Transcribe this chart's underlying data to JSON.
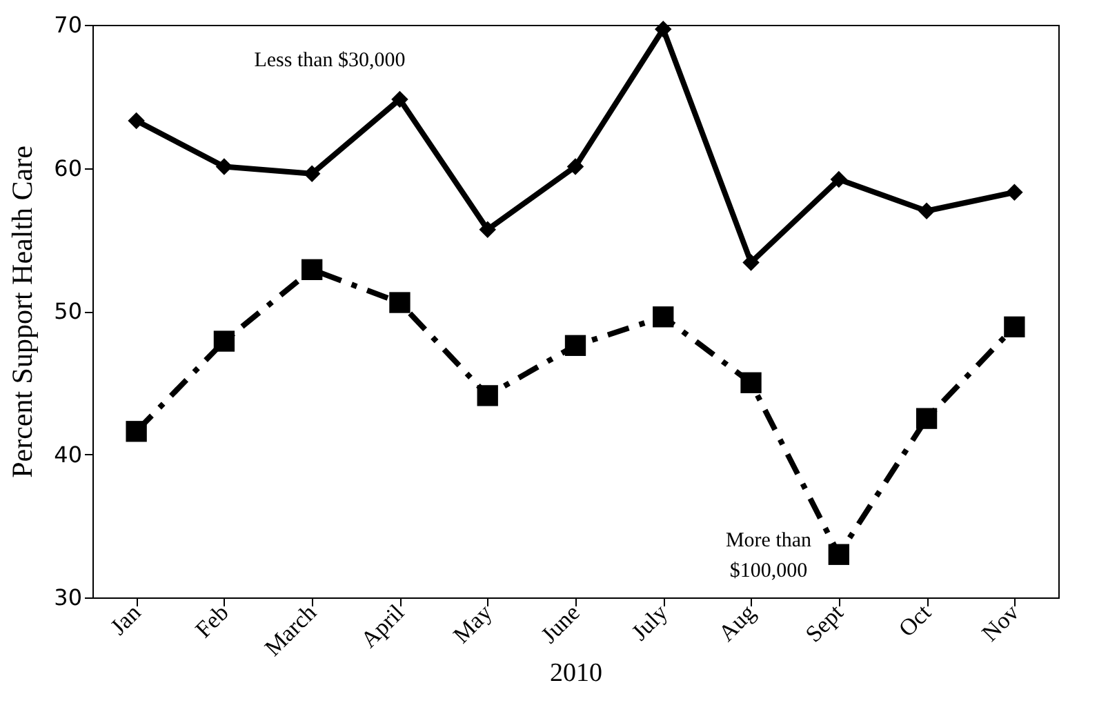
{
  "chart_data": {
    "type": "line",
    "xlabel": "2010",
    "ylabel": "Percent Support Health Care",
    "categories": [
      "Jan",
      "Feb",
      "March",
      "April",
      "May",
      "June",
      "July",
      "Aug",
      "Sept",
      "Oct",
      "Nov"
    ],
    "series": [
      {
        "name": "Less than $30,000",
        "color": "#000000",
        "marker": "diamond",
        "line_style": "solid",
        "values": [
          63.3,
          60.1,
          59.6,
          64.8,
          55.7,
          60.1,
          69.7,
          53.4,
          59.2,
          57.0,
          58.3
        ]
      },
      {
        "name": "More than\n$100,000",
        "color": "#000000",
        "marker": "square",
        "line_style": "dashed",
        "values": [
          41.6,
          47.9,
          52.9,
          50.6,
          44.1,
          47.6,
          49.6,
          45.0,
          33.0,
          42.5,
          48.9
        ]
      }
    ],
    "ylim": [
      30,
      70
    ],
    "yticks": [
      30,
      40,
      50,
      60,
      70
    ],
    "grid": false
  }
}
